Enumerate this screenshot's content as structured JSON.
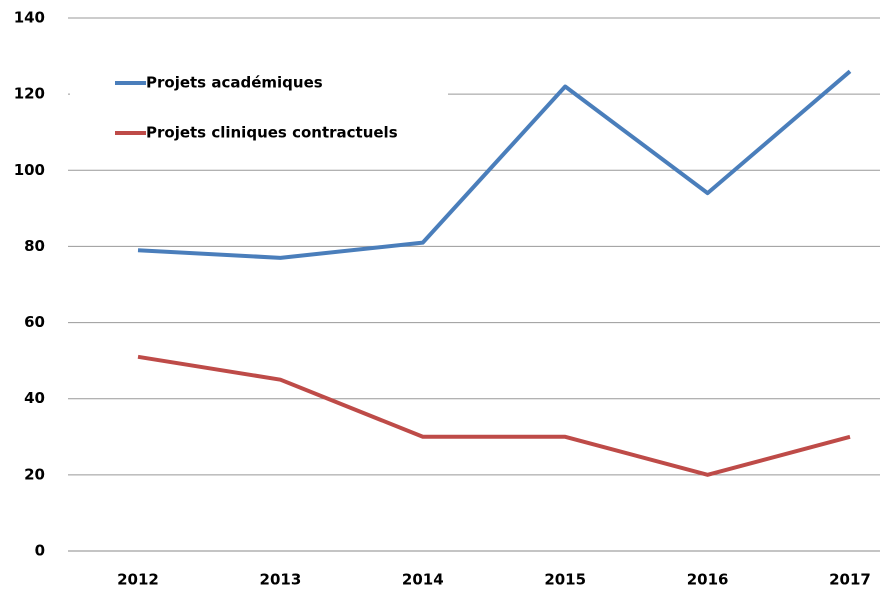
{
  "chart_data": {
    "type": "line",
    "categories": [
      "2012",
      "2013",
      "2014",
      "2015",
      "2016",
      "2017"
    ],
    "series": [
      {
        "name": "Projets académiques",
        "color": "#4a7ebb",
        "values": [
          79,
          77,
          81,
          122,
          94,
          126
        ]
      },
      {
        "name": "Projets cliniques contractuels",
        "color": "#be4b48",
        "values": [
          51,
          45,
          30,
          30,
          20,
          30
        ]
      }
    ],
    "ylim": [
      0,
      140
    ],
    "yticks": [
      0,
      20,
      40,
      60,
      80,
      100,
      120,
      140
    ],
    "grid": true,
    "legend": "top-left"
  }
}
